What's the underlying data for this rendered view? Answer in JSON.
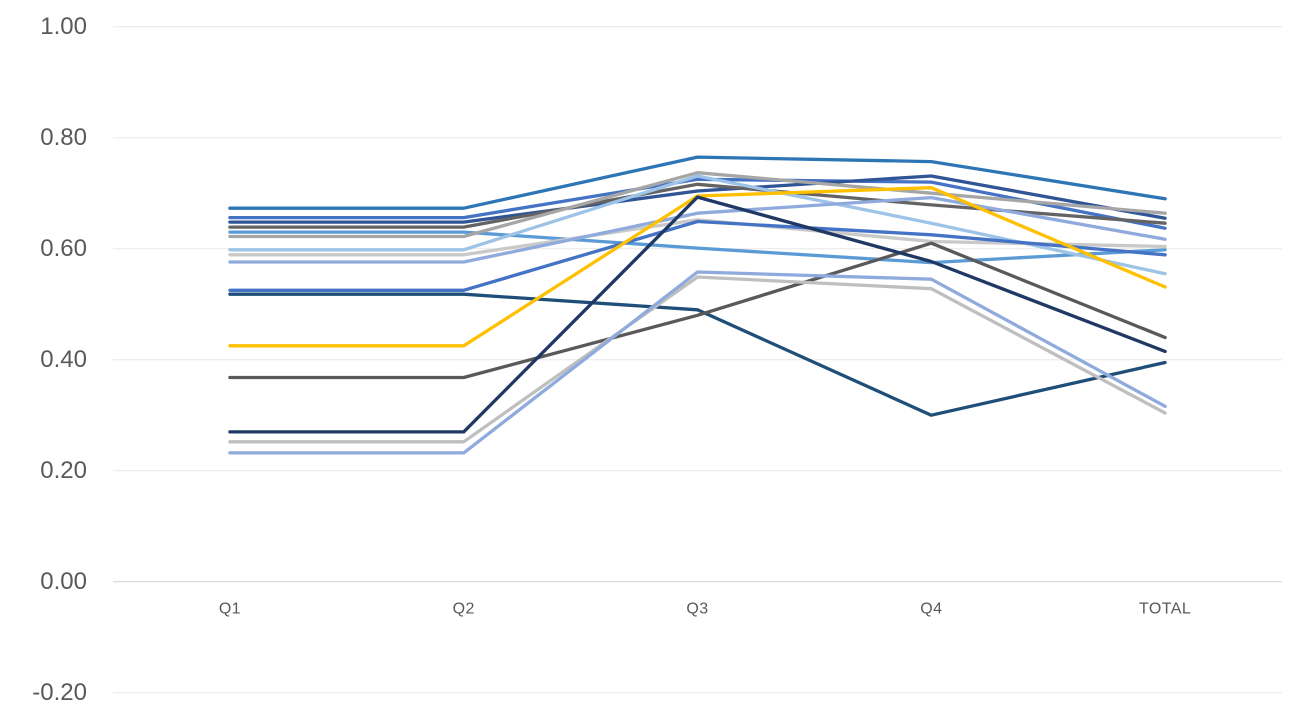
{
  "chart_data": {
    "type": "line",
    "title": "",
    "xlabel": "",
    "ylabel": "",
    "legend": "none",
    "grid": "horizontal",
    "categories": [
      "Q1",
      "Q2",
      "Q3",
      "Q4",
      "TOTAL"
    ],
    "ylim": [
      -0.2,
      1.0
    ],
    "yticks": {
      "values": [
        1.0,
        0.8,
        0.6,
        0.4,
        0.2,
        0.0,
        -0.2
      ],
      "labels": [
        "1.00",
        "0.80",
        "0.60",
        "0.40",
        "0.20",
        "0.00",
        "-0.20"
      ]
    },
    "colors": {
      "tick_label": "#595959",
      "gridline": "#E8E8E8",
      "zero_axis": "#D2D2D2",
      "background": "#FFFFFF"
    },
    "series": [
      {
        "color": "#2E75B6",
        "values": [
          0.673,
          0.673,
          0.765,
          0.757,
          0.69
        ]
      },
      {
        "color": "#4472C4",
        "values": [
          0.656,
          0.656,
          0.725,
          0.72,
          0.637
        ]
      },
      {
        "color": "#2F5597",
        "values": [
          0.648,
          0.648,
          0.704,
          0.731,
          0.655
        ]
      },
      {
        "color": "#636363",
        "values": [
          0.639,
          0.639,
          0.716,
          0.679,
          0.646
        ]
      },
      {
        "color": "#5B9BD5",
        "values": [
          0.63,
          0.63,
          0.601,
          0.575,
          0.598
        ]
      },
      {
        "color": "#A6A6A6",
        "values": [
          0.622,
          0.622,
          0.737,
          0.7,
          0.664
        ]
      },
      {
        "color": "#9DC3E6",
        "values": [
          0.598,
          0.598,
          0.731,
          0.646,
          0.555
        ]
      },
      {
        "color": "#C9C9C9",
        "values": [
          0.589,
          0.589,
          0.652,
          0.613,
          0.604
        ]
      },
      {
        "color": "#8FAADC",
        "values": [
          0.576,
          0.576,
          0.664,
          0.692,
          0.617
        ]
      },
      {
        "color": "#4472C4",
        "values": [
          0.525,
          0.525,
          0.649,
          0.625,
          0.589
        ]
      },
      {
        "color": "#1F4E79",
        "values": [
          0.518,
          0.518,
          0.49,
          0.3,
          0.395
        ]
      },
      {
        "color": "#FFC000",
        "values": [
          0.425,
          0.425,
          0.695,
          0.71,
          0.531
        ]
      },
      {
        "color": "#595959",
        "values": [
          0.368,
          0.368,
          0.48,
          0.61,
          0.44
        ]
      },
      {
        "color": "#203864",
        "values": [
          0.27,
          0.27,
          0.693,
          0.577,
          0.415
        ]
      },
      {
        "color": "#BFBFBF",
        "values": [
          0.252,
          0.252,
          0.549,
          0.528,
          0.304
        ]
      },
      {
        "color": "#8FAADC",
        "values": [
          0.232,
          0.232,
          0.558,
          0.545,
          0.316
        ]
      }
    ]
  }
}
